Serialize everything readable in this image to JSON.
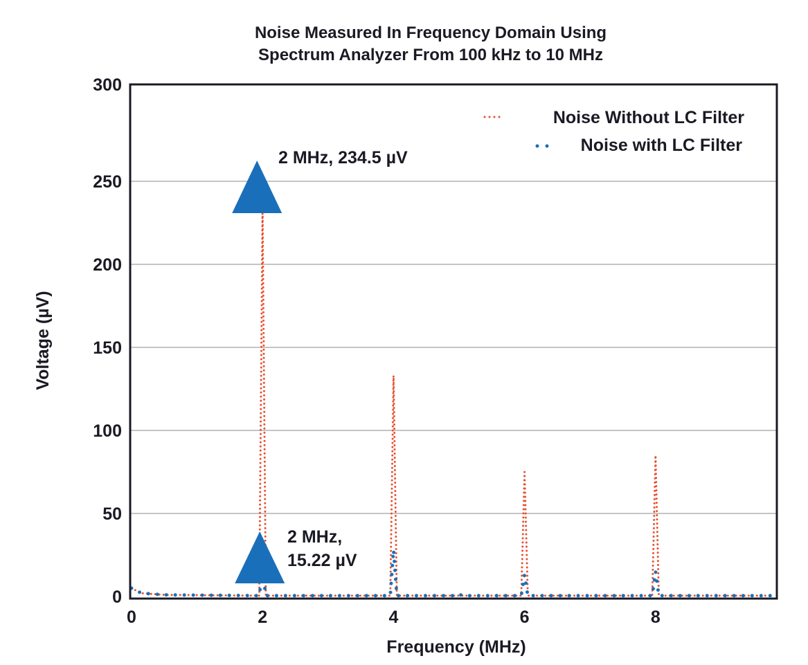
{
  "chart_data": {
    "type": "line",
    "title_lines": [
      "Noise Measured In Frequency Domain Using",
      "Spectrum Analyzer From 100 kHz to 10 MHz"
    ],
    "xlabel": "Frequency (MHz)",
    "ylabel": "Voltage (µV)",
    "xlim": [
      0,
      9.8
    ],
    "ylim": [
      0,
      300
    ],
    "xticks": [
      "0",
      "2",
      "4",
      "6",
      "8"
    ],
    "yticks": [
      "0",
      "50",
      "100",
      "150",
      "200",
      "250",
      "300"
    ],
    "grid": "horizontal",
    "legend_position": "top-right",
    "series": [
      {
        "name": "Noise Without LC Filter",
        "color": "#e8502f",
        "x": [
          0,
          0.15,
          0.5,
          1.95,
          2,
          2.05,
          3.95,
          4,
          4.05,
          5.95,
          6,
          6.05,
          7.95,
          8,
          8.05,
          9.8
        ],
        "y": [
          5,
          2,
          1,
          0.5,
          234.5,
          0.5,
          0.5,
          133,
          0.5,
          0.5,
          75,
          0.5,
          0.5,
          85,
          0.5,
          0.5
        ]
      },
      {
        "name": "Noise with LC Filter",
        "color": "#1a6fba",
        "x": [
          0,
          0.15,
          0.5,
          1.95,
          2,
          2.05,
          3.95,
          4,
          4.05,
          4.95,
          5,
          5.05,
          5.95,
          6,
          6.05,
          7.95,
          8,
          8.05,
          9.8
        ],
        "y": [
          5,
          2,
          1,
          0.5,
          15.22,
          0.5,
          0.5,
          28,
          0.5,
          0.5,
          1.5,
          0.5,
          0.5,
          13,
          0.5,
          0.5,
          15,
          0.5,
          0.5
        ]
      }
    ],
    "annotations": [
      {
        "text": "2 MHz, 234.5 µV",
        "x": 2,
        "y": 234.5,
        "marker": "triangle",
        "color": "#1a6fba"
      },
      {
        "text_lines": [
          "2 MHz,",
          "15.22 µV"
        ],
        "x": 2,
        "y": 15.22,
        "marker": "triangle",
        "color": "#1a6fba"
      }
    ]
  }
}
